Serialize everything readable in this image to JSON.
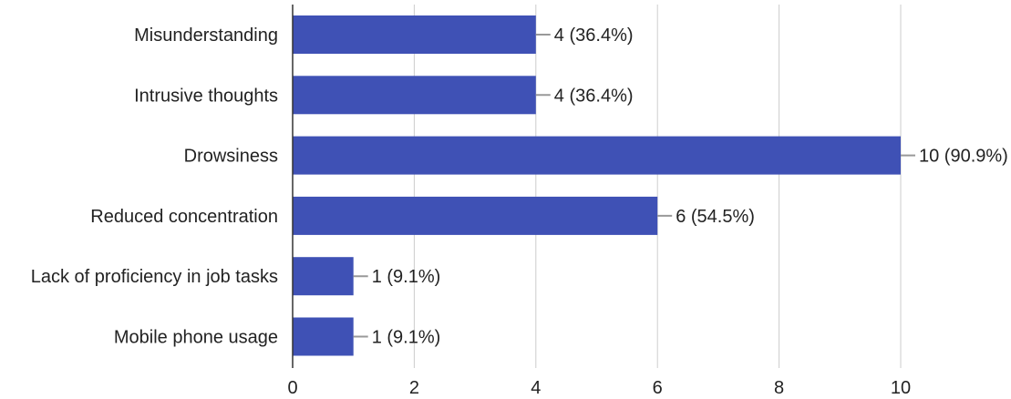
{
  "chart_data": {
    "type": "bar",
    "orientation": "horizontal",
    "categories": [
      "Misunderstanding",
      "Intrusive thoughts",
      "Drowsiness",
      "Reduced concentration",
      "Lack of proficiency in job tasks",
      "Mobile phone usage"
    ],
    "values": [
      4,
      4,
      10,
      6,
      1,
      1
    ],
    "data_labels": [
      "4 (36.4%)",
      "4 (36.4%)",
      "10 (90.9%)",
      "6 (54.5%)",
      "1 (9.1%)",
      "1 (9.1%)"
    ],
    "xlim": [
      0,
      10
    ],
    "xticks": [
      0,
      2,
      4,
      6,
      8,
      10
    ],
    "grid": true,
    "bar_color": "#3f51b5",
    "title": "",
    "xlabel": "",
    "ylabel": ""
  }
}
